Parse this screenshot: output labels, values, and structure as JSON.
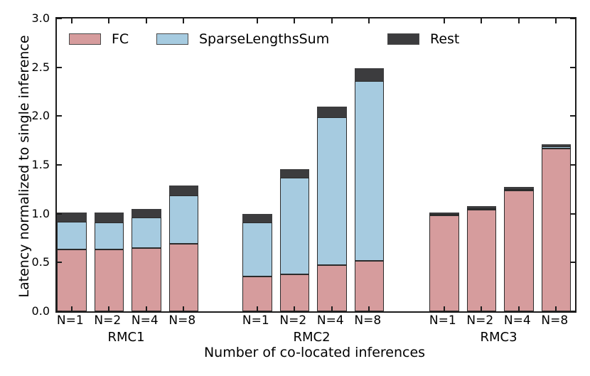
{
  "chart_data": {
    "type": "bar",
    "stacked": true,
    "title": "",
    "xlabel": "Number of co-located inferences",
    "ylabel": "Latency normalized to single inference",
    "ylim": [
      0.0,
      3.0
    ],
    "yticks": [
      "0.0",
      "0.5",
      "1.0",
      "1.5",
      "2.0",
      "2.5",
      "3.0"
    ],
    "grid": "off",
    "legend_position": "top-inside",
    "series_names": [
      "FC",
      "SparseLengthsSum",
      "Rest"
    ],
    "colors": {
      "fc": "#d69c9d",
      "sparselengthssum": "#a6cbe0",
      "rest": "#3c3c3e",
      "bar_edge": "#2b2b2b",
      "axis": "#1c1c1c"
    },
    "groups": [
      {
        "label": "RMC1",
        "bars": [
          {
            "label": "N=1",
            "values": [
              0.63,
              0.29,
              0.09
            ],
            "total": 1.01
          },
          {
            "label": "N=2",
            "values": [
              0.63,
              0.28,
              0.1
            ],
            "total": 1.01
          },
          {
            "label": "N=4",
            "values": [
              0.65,
              0.31,
              0.09
            ],
            "total": 1.05
          },
          {
            "label": "N=8",
            "values": [
              0.69,
              0.5,
              0.1
            ],
            "total": 1.29
          }
        ]
      },
      {
        "label": "RMC2",
        "bars": [
          {
            "label": "N=1",
            "values": [
              0.36,
              0.55,
              0.09
            ],
            "total": 1.0
          },
          {
            "label": "N=2",
            "values": [
              0.38,
              0.99,
              0.09
            ],
            "total": 1.46
          },
          {
            "label": "N=4",
            "values": [
              0.47,
              1.52,
              0.11
            ],
            "total": 2.1
          },
          {
            "label": "N=8",
            "values": [
              0.52,
              1.84,
              0.13
            ],
            "total": 2.49
          }
        ]
      },
      {
        "label": "RMC3",
        "bars": [
          {
            "label": "N=1",
            "values": [
              0.98,
              0.01,
              0.01
            ],
            "total": 1.0
          },
          {
            "label": "N=2",
            "values": [
              1.04,
              0.01,
              0.02
            ],
            "total": 1.07
          },
          {
            "label": "N=4",
            "values": [
              1.24,
              0.01,
              0.02
            ],
            "total": 1.27
          },
          {
            "label": "N=8",
            "values": [
              1.67,
              0.02,
              0.02
            ],
            "total": 1.71
          }
        ]
      }
    ]
  }
}
